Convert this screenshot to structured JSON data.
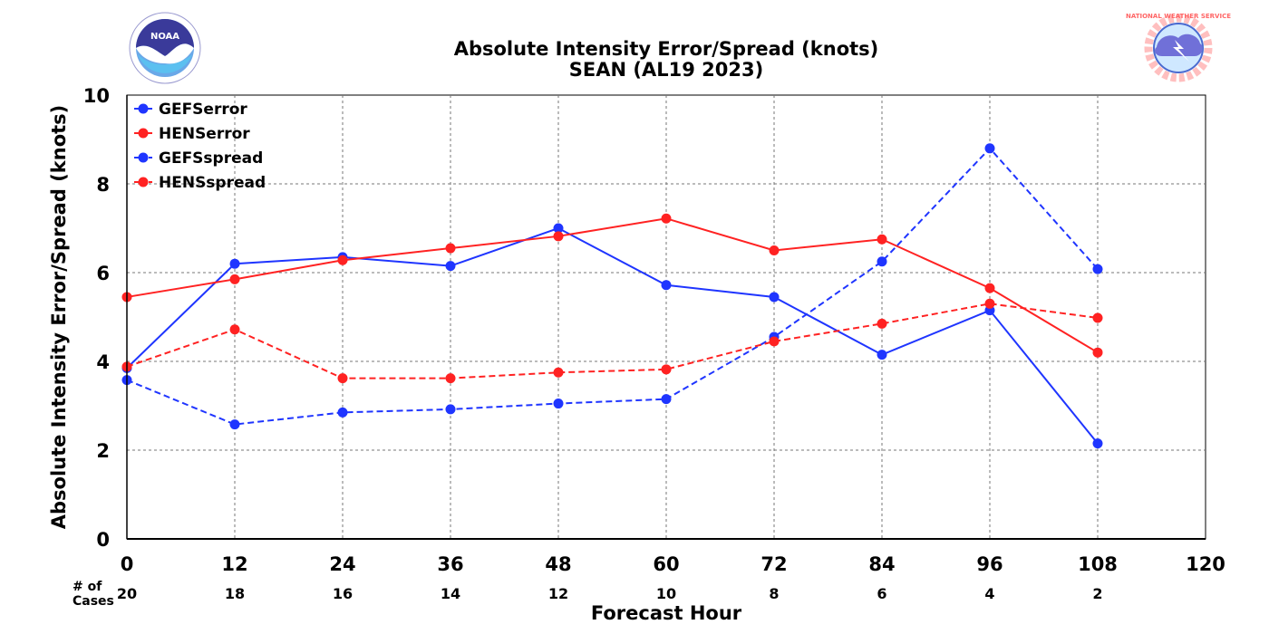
{
  "logos": {
    "left": {
      "icon": "noaa-logo",
      "text": "NOAA"
    },
    "right": {
      "icon": "nws-logo",
      "text": "NATIONAL WEATHER SERVICE"
    }
  },
  "chart_data": {
    "type": "line",
    "title": "Absolute Intensity Error/Spread (knots)",
    "subtitle": "SEAN (AL19 2023)",
    "xlabel": "Forecast Hour",
    "ylabel": "Absolute Intensity Error/Spread (knots)",
    "xlim": [
      0,
      120
    ],
    "ylim": [
      0,
      10
    ],
    "x_ticks": [
      0,
      12,
      24,
      36,
      48,
      60,
      72,
      84,
      96,
      108,
      120
    ],
    "y_ticks": [
      0,
      2,
      4,
      6,
      8,
      10
    ],
    "grid": true,
    "legend_position": "top-left",
    "cases_header": [
      "# of",
      "Cases"
    ],
    "cases": [
      20,
      18,
      16,
      14,
      12,
      10,
      8,
      6,
      4,
      2
    ],
    "x": [
      0,
      12,
      24,
      36,
      48,
      60,
      72,
      84,
      96,
      108
    ],
    "series": [
      {
        "name": "GEFSerror",
        "color": "#1f35ff",
        "dash": "solid",
        "values": [
          3.85,
          6.2,
          6.35,
          6.15,
          7.0,
          5.72,
          5.45,
          4.15,
          5.15,
          2.15
        ]
      },
      {
        "name": "HENSerror",
        "color": "#ff2222",
        "dash": "solid",
        "values": [
          5.45,
          5.85,
          6.28,
          6.55,
          6.82,
          7.22,
          6.5,
          6.75,
          5.65,
          4.2
        ]
      },
      {
        "name": "GEFSspread",
        "color": "#1f35ff",
        "dash": "dashed",
        "values": [
          3.58,
          2.58,
          2.85,
          2.92,
          3.05,
          3.15,
          4.55,
          6.25,
          8.8,
          6.08
        ]
      },
      {
        "name": "HENSspread",
        "color": "#ff2222",
        "dash": "dashed",
        "values": [
          3.88,
          4.72,
          3.62,
          3.62,
          3.75,
          3.82,
          4.45,
          4.85,
          5.3,
          4.98
        ]
      }
    ]
  }
}
